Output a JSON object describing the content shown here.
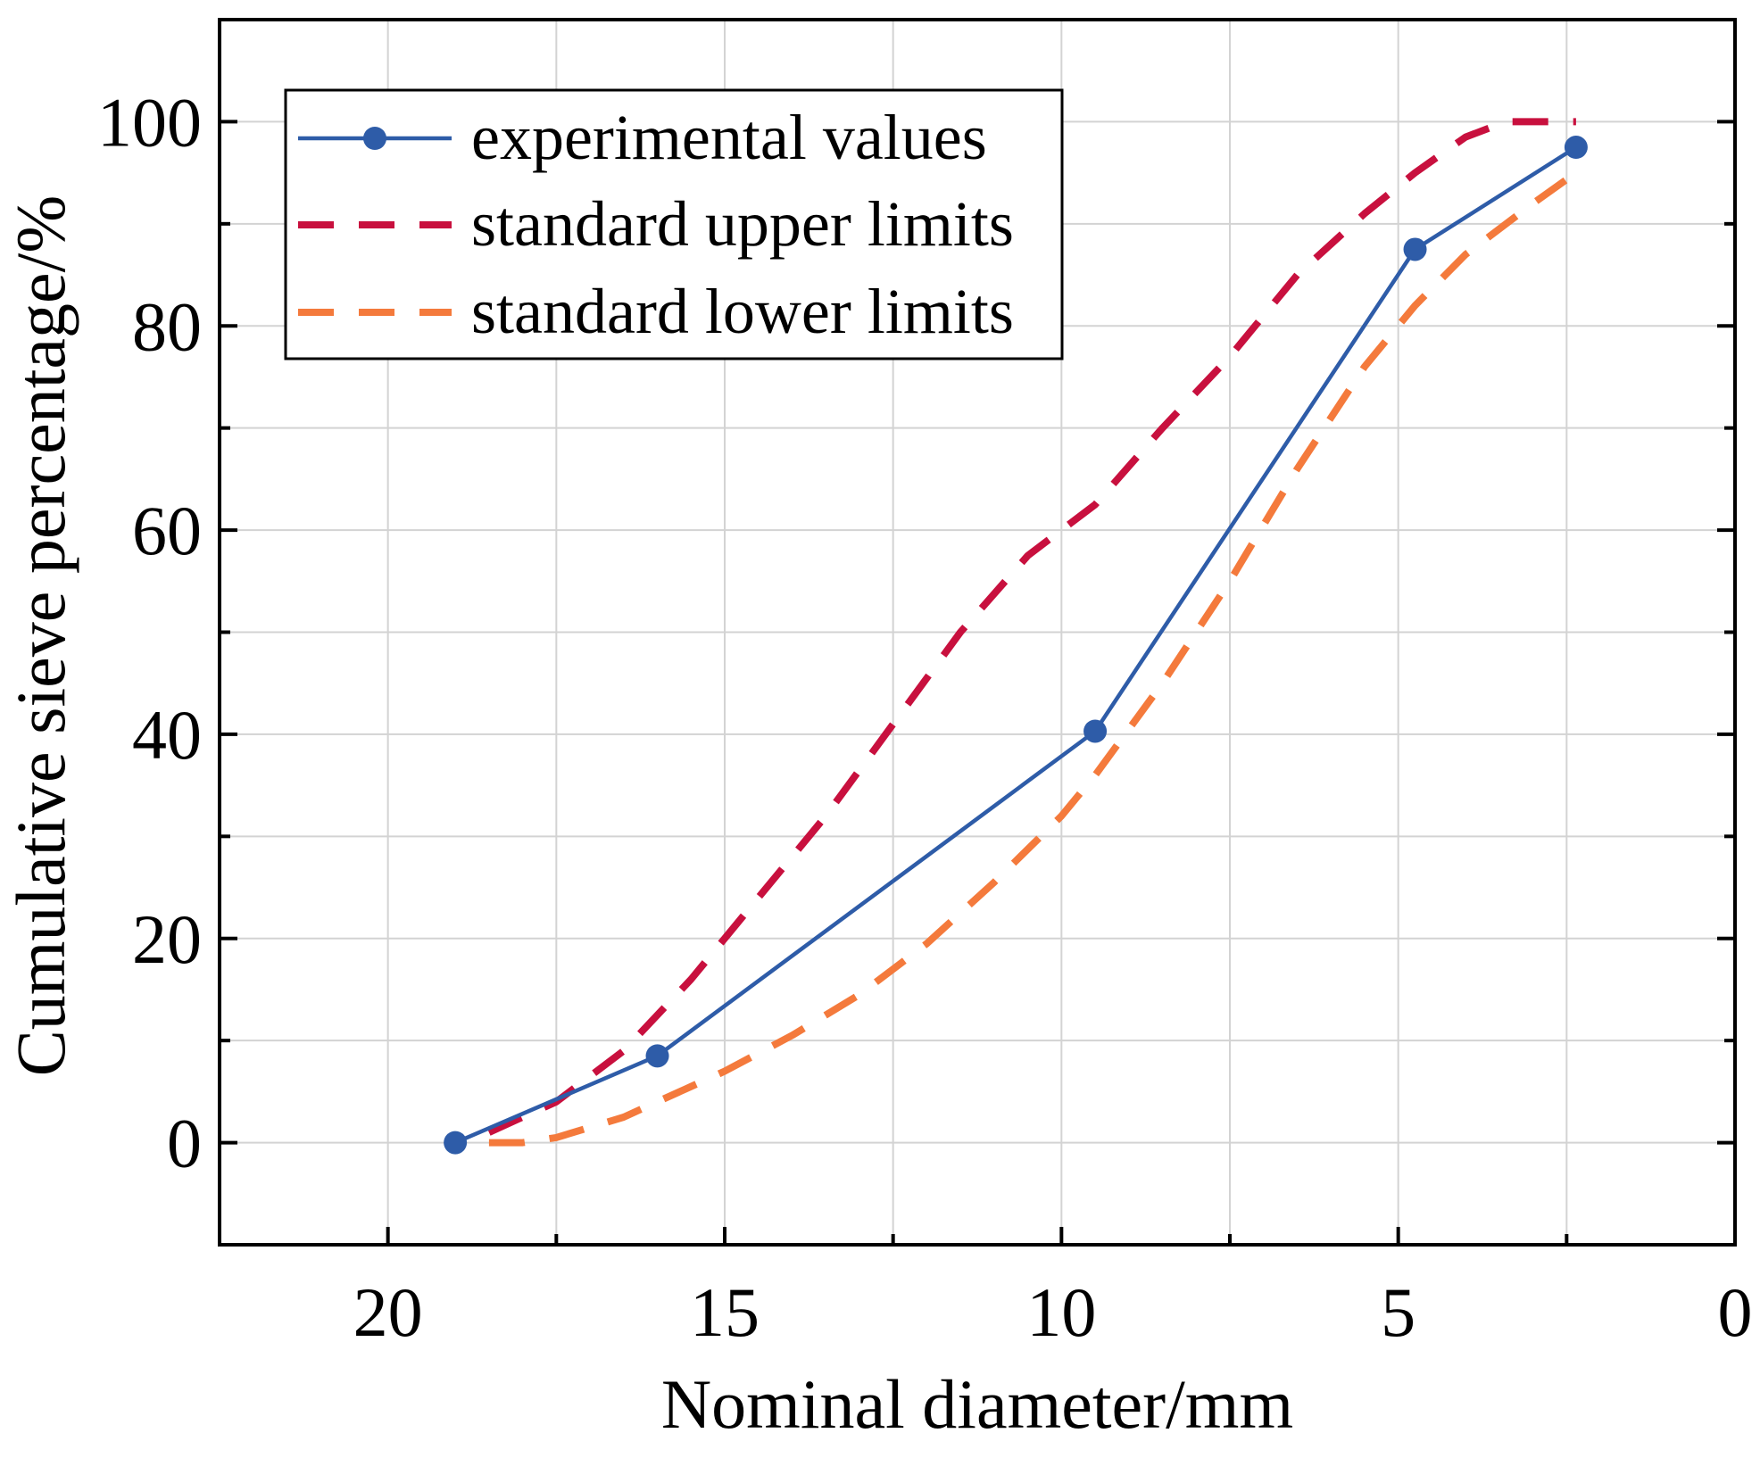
{
  "chart_data": {
    "type": "line",
    "title": "",
    "xlabel": "Nominal diameter/mm",
    "ylabel": "Cumulative sieve percentage/%",
    "xlim": [
      22.5,
      0
    ],
    "ylim": [
      -10,
      110
    ],
    "x_ticks": [
      20,
      15,
      10,
      5,
      0
    ],
    "x_minor_ticks": [
      17.5,
      12.5,
      7.5,
      2.5
    ],
    "y_ticks": [
      0,
      20,
      40,
      60,
      80,
      100
    ],
    "y_minor_ticks": [
      10,
      30,
      50,
      70,
      90
    ],
    "grid": true,
    "legend_position": "top-left",
    "series": [
      {
        "name": "experimental values",
        "style": "solid-markers",
        "color": "#2E5CA8",
        "x": [
          19,
          16,
          9.5,
          4.75,
          2.36
        ],
        "y": [
          0,
          8.5,
          40.3,
          87.5,
          97.5
        ]
      },
      {
        "name": "standard upper limits",
        "style": "dashed",
        "color": "#C8103E",
        "x": [
          18.5,
          17.5,
          16.5,
          15.5,
          14.5,
          13.5,
          12.5,
          11.5,
          10.5,
          9.5,
          8.5,
          7.5,
          6.5,
          5.5,
          4.75,
          4.0,
          3.4,
          2.9,
          2.36
        ],
        "y": [
          1,
          4,
          9,
          16,
          24,
          32,
          41,
          50,
          57.5,
          62.5,
          70,
          77,
          85,
          91,
          95,
          98.5,
          100,
          100,
          100
        ]
      },
      {
        "name": "standard lower limits",
        "style": "dashed",
        "color": "#F47A3C",
        "x": [
          18.5,
          18.0,
          17.5,
          17.0,
          16.5,
          16.0,
          15.5,
          15.0,
          14.0,
          13.0,
          12.0,
          11.0,
          10.0,
          9.5,
          8.5,
          7.5,
          6.5,
          5.5,
          4.75,
          4.0,
          3.0,
          2.36
        ],
        "y": [
          0,
          0,
          0.5,
          1.5,
          2.5,
          4,
          5.5,
          7,
          10.5,
          14.5,
          19.5,
          25.5,
          32,
          36,
          45,
          55,
          66,
          76,
          82,
          87,
          92,
          95
        ]
      }
    ]
  }
}
